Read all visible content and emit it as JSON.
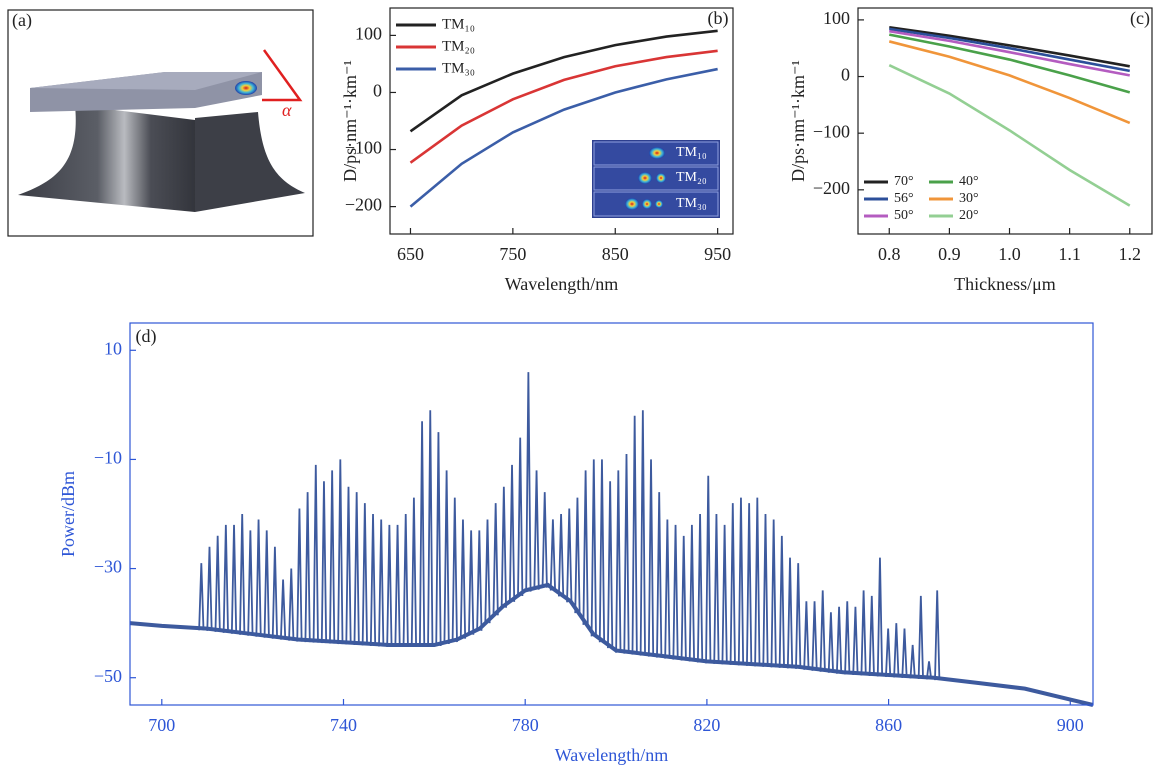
{
  "panel_a": {
    "label": "(a)",
    "angle": "α"
  },
  "chart_data": [
    {
      "type": "line",
      "panel_label": "(b)",
      "x_label": "Wavelength/nm",
      "y_label": "D/ps·nm⁻¹·km⁻¹",
      "x": [
        650,
        700,
        750,
        800,
        850,
        900,
        950
      ],
      "xlim": [
        630,
        965
      ],
      "ylim": [
        -248,
        148
      ],
      "xticks": [
        650,
        750,
        850,
        950
      ],
      "yticks": [
        {
          "value": -200,
          "label": "−200"
        },
        {
          "value": -100,
          "label": "−100"
        },
        0,
        100
      ],
      "legend": "upper left",
      "legend_columns": 1,
      "axis_color": "#222",
      "series": [
        {
          "name": "TM₁₀",
          "color": "#222222",
          "values": [
            -68,
            -5,
            33,
            62,
            83,
            98,
            108
          ]
        },
        {
          "name": "TM₂₀",
          "color": "#d93535",
          "values": [
            -123,
            -58,
            -12,
            22,
            46,
            62,
            73
          ]
        },
        {
          "name": "TM₃₀",
          "color": "#3b5ea8",
          "values": [
            -200,
            -125,
            -70,
            -30,
            0,
            23,
            41
          ]
        }
      ],
      "inset_labels": [
        "TM₁₀",
        "TM₂₀",
        "TM₃₀"
      ]
    },
    {
      "type": "line",
      "panel_label": "(c)",
      "x_label": "Thickness/μm",
      "y_label": "D/ps·nm⁻¹·km⁻¹",
      "x": [
        0.8,
        0.9,
        1.0,
        1.1,
        1.2
      ],
      "xlim": [
        0.748,
        1.237
      ],
      "ylim": [
        -278,
        121
      ],
      "xticks": [
        0.8,
        0.9,
        {
          "value": 1.0,
          "label": "1.0"
        },
        1.1,
        1.2
      ],
      "yticks": [
        {
          "value": -200,
          "label": "−200"
        },
        {
          "value": -100,
          "label": "−100"
        },
        0,
        100
      ],
      "legend": "lower left",
      "legend_columns": 2,
      "axis_color": "#222",
      "series": [
        {
          "name": "70°",
          "color": "#222222",
          "values": [
            87,
            72,
            55,
            37,
            18
          ]
        },
        {
          "name": "56°",
          "color": "#2c4f9a",
          "values": [
            84,
            68,
            50,
            30,
            10
          ]
        },
        {
          "name": "50°",
          "color": "#b45cc0",
          "values": [
            80,
            63,
            43,
            22,
            2
          ]
        },
        {
          "name": "40°",
          "color": "#4aa14a",
          "values": [
            74,
            53,
            30,
            2,
            -28
          ]
        },
        {
          "name": "30°",
          "color": "#f0953a",
          "values": [
            62,
            35,
            2,
            -38,
            -82
          ]
        },
        {
          "name": "20°",
          "color": "#93cf93",
          "values": [
            20,
            -30,
            -95,
            -165,
            -228
          ]
        }
      ]
    },
    {
      "type": "spectrum",
      "panel_label": "(d)",
      "x_label": "Wavelength/nm",
      "y_label": "Power/dBm",
      "xlim": [
        693,
        905
      ],
      "ylim": [
        -55,
        15
      ],
      "xticks": [
        700,
        740,
        780,
        820,
        860,
        900
      ],
      "yticks": [
        {
          "value": -50,
          "label": "−50"
        },
        {
          "value": -30,
          "label": "−30"
        },
        {
          "value": -10,
          "label": "−10"
        },
        10
      ],
      "axis_color": "#2e56d6",
      "color": "#3d5a9e",
      "baseline": {
        "x": [
          693,
          700,
          710,
          720,
          730,
          740,
          750,
          760,
          765,
          770,
          775,
          780,
          785,
          790,
          795,
          800,
          810,
          820,
          830,
          840,
          850,
          860,
          870,
          880,
          890,
          900,
          905
        ],
        "values": [
          -40,
          -40.5,
          -41,
          -42,
          -43,
          -43.5,
          -44,
          -44,
          -43,
          -41,
          -37,
          -34,
          -33,
          -36,
          -42,
          -45,
          -46,
          -47,
          -47.5,
          -48,
          -49,
          -49.5,
          -50,
          -51,
          -52,
          -54,
          -55
        ]
      },
      "peaks": {
        "x": [
          708.7,
          710.5,
          712.3,
          714.1,
          715.9,
          717.7,
          719.5,
          721.3,
          723.1,
          724.9,
          726.7,
          728.5,
          730.3,
          732.1,
          733.9,
          735.7,
          737.5,
          739.3,
          741.1,
          742.9,
          744.7,
          746.5,
          748.3,
          750.1,
          751.9,
          753.7,
          755.5,
          757.3,
          759.1,
          760.9,
          762.7,
          764.5,
          766.3,
          768.1,
          769.9,
          771.7,
          773.5,
          775.3,
          777.1,
          778.9,
          780.7,
          782.5,
          784.3,
          786.1,
          787.9,
          789.7,
          791.5,
          793.3,
          795.1,
          796.9,
          798.7,
          800.5,
          802.3,
          804.1,
          805.9,
          807.7,
          809.5,
          811.3,
          813.1,
          814.9,
          816.7,
          818.5,
          820.3,
          822.1,
          823.9,
          825.7,
          827.5,
          829.3,
          831.1,
          832.9,
          834.7,
          836.5,
          838.3,
          840.1,
          841.9,
          843.7,
          845.5,
          847.3,
          849.1,
          850.9,
          852.7,
          854.5,
          856.3,
          858.1,
          859.9,
          861.7,
          863.5,
          865.3,
          867.1,
          868.9,
          870.7
        ],
        "values": [
          -29,
          -26,
          -24,
          -22,
          -22,
          -20,
          -23,
          -21,
          -23,
          -26,
          -32,
          -30,
          -19,
          -16,
          -11,
          -14,
          -12,
          -10,
          -15,
          -16,
          -18,
          -20,
          -21,
          -22,
          -22,
          -20,
          -17,
          -3,
          -1,
          -5,
          -12,
          -17,
          -21,
          -23,
          -23,
          -21,
          -18,
          -15,
          -11,
          -6,
          6,
          -12,
          -16,
          -21,
          -20,
          -19,
          -17,
          -12,
          -10,
          -10,
          -14,
          -12,
          -9,
          -2,
          -1,
          -10,
          -16,
          -21,
          -22,
          -24,
          -22,
          -20,
          -13,
          -20,
          -22,
          -18,
          -17,
          -18,
          -17,
          -20,
          -21,
          -24,
          -28,
          -29,
          -36,
          -36,
          -34,
          -38,
          -37,
          -36,
          -37,
          -34,
          -35,
          -28,
          -41,
          -40,
          -41,
          -44,
          -35,
          -47,
          -34
        ]
      }
    }
  ]
}
